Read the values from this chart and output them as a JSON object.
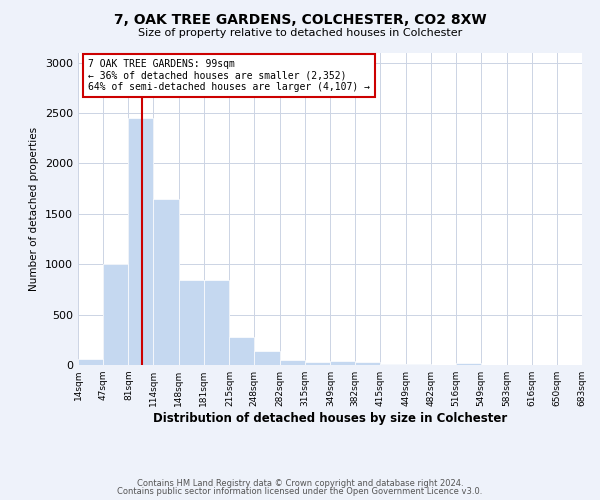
{
  "title": "7, OAK TREE GARDENS, COLCHESTER, CO2 8XW",
  "subtitle": "Size of property relative to detached houses in Colchester",
  "xlabel": "Distribution of detached houses by size in Colchester",
  "ylabel": "Number of detached properties",
  "footnote1": "Contains HM Land Registry data © Crown copyright and database right 2024.",
  "footnote2": "Contains public sector information licensed under the Open Government Licence v3.0.",
  "annotation_line1": "7 OAK TREE GARDENS: 99sqm",
  "annotation_line2": "← 36% of detached houses are smaller (2,352)",
  "annotation_line3": "64% of semi-detached houses are larger (4,107) →",
  "property_sqm": 99,
  "bin_edges": [
    14,
    47,
    81,
    114,
    148,
    181,
    215,
    248,
    282,
    315,
    349,
    382,
    415,
    449,
    482,
    516,
    549,
    583,
    616,
    650,
    683
  ],
  "bar_heights": [
    55,
    1000,
    2450,
    1650,
    840,
    840,
    280,
    135,
    45,
    30,
    40,
    25,
    5,
    5,
    0,
    15,
    0,
    0,
    0,
    0
  ],
  "bar_color": "#c5d8f0",
  "vline_color": "#cc0000",
  "vline_x": 99,
  "ylim": [
    0,
    3100
  ],
  "yticks": [
    0,
    500,
    1000,
    1500,
    2000,
    2500,
    3000
  ],
  "annotation_box_color": "#cc0000",
  "bg_color": "#eef2fa",
  "plot_bg_color": "#ffffff",
  "grid_color": "#ccd4e4"
}
